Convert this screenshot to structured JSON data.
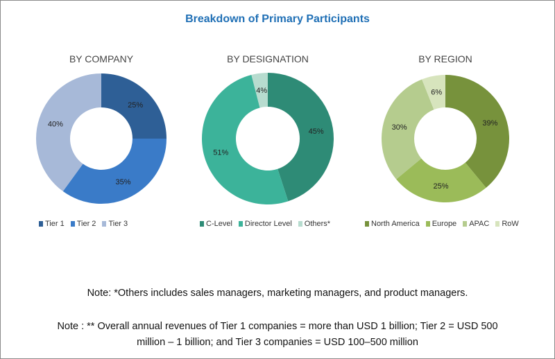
{
  "title": "Breakdown of Primary Participants",
  "chart_data": [
    {
      "type": "pie",
      "donut": true,
      "title": "BY COMPANY",
      "categories": [
        "Tier 1",
        "Tier 2",
        "Tier 3"
      ],
      "values": [
        25,
        35,
        40
      ],
      "labels": [
        "25%",
        "35%",
        "40%"
      ],
      "colors": [
        "#2e5f96",
        "#3a7bc8",
        "#a7b9d8"
      ],
      "legend_placement": "bottom"
    },
    {
      "type": "pie",
      "donut": true,
      "title": "BY DESIGNATION",
      "categories": [
        "C-Level",
        "Director Level",
        "Others*"
      ],
      "values": [
        45,
        51,
        4
      ],
      "labels": [
        "45%",
        "51%",
        "4%"
      ],
      "colors": [
        "#2e8b76",
        "#3cb39a",
        "#b7dccf"
      ],
      "legend_placement": "bottom"
    },
    {
      "type": "pie",
      "donut": true,
      "title": "BY REGION",
      "categories": [
        "North America",
        "Europe",
        "APAC",
        "RoW"
      ],
      "values": [
        39,
        25,
        30,
        6
      ],
      "labels": [
        "39%",
        "25%",
        "30%",
        "6%"
      ],
      "colors": [
        "#77923c",
        "#9bbb59",
        "#b5cc8e",
        "#d7e4bd"
      ],
      "legend_placement": "bottom"
    }
  ],
  "notes": [
    "Note: *Others includes sales managers, marketing managers, and product managers.",
    "Note : **  Overall annual revenues of Tier 1 companies = more than USD 1 billion; Tier 2 = USD 500",
    "million – 1 billion; and Tier 3 companies = USD 100–500 million"
  ]
}
